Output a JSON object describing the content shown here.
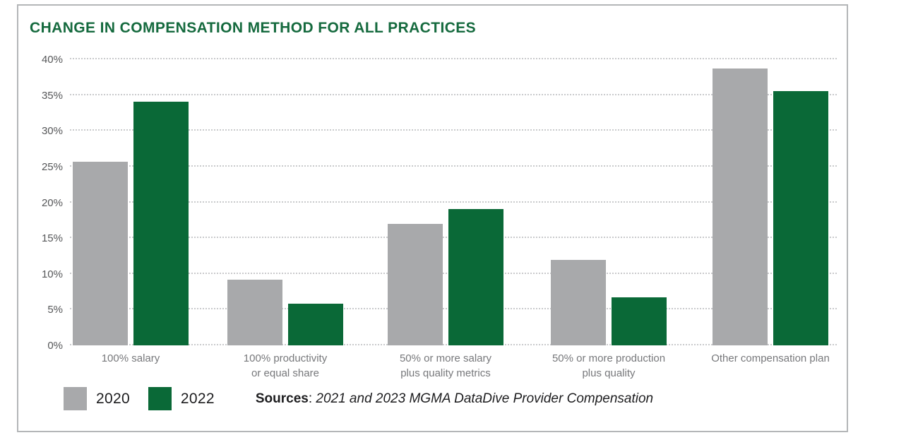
{
  "title": "CHANGE IN COMPENSATION METHOD FOR ALL PRACTICES",
  "colors": {
    "title_green": "#156a3e",
    "bar_2020_gray": "#a8a9ab",
    "bar_2022_green": "#0a6937",
    "gridline": "#c9cacc",
    "panel_border": "#b4b6b8"
  },
  "legend": [
    {
      "label": "2020",
      "color": "#a8a9ab"
    },
    {
      "label": "2022",
      "color": "#0a6937"
    }
  ],
  "footer": {
    "sources_label": "Sources",
    "sources_separator": ": ",
    "sources_text": "2021 and 2023 MGMA DataDive Provider Compensation"
  },
  "chart_data": {
    "type": "bar",
    "categories": [
      "100% salary",
      "100% productivity\nor equal share",
      "50% or more salary\nplus quality metrics",
      "50% or more production\nplus quality",
      "Other compensation plan"
    ],
    "series": [
      {
        "name": "2020",
        "color": "#a8a9ab",
        "values": [
          25.7,
          9.2,
          17.0,
          12.0,
          38.7
        ]
      },
      {
        "name": "2022",
        "color": "#0a6937",
        "values": [
          34.1,
          5.8,
          19.1,
          6.7,
          35.6
        ]
      }
    ],
    "title": "CHANGE IN COMPENSATION METHOD FOR ALL PRACTICES",
    "xlabel": "",
    "ylabel": "",
    "ylim": [
      0,
      40
    ],
    "ytick_step": 5,
    "ytick_suffix": "%",
    "grid": "horizontal-dotted",
    "legend_position": "bottom-left"
  }
}
